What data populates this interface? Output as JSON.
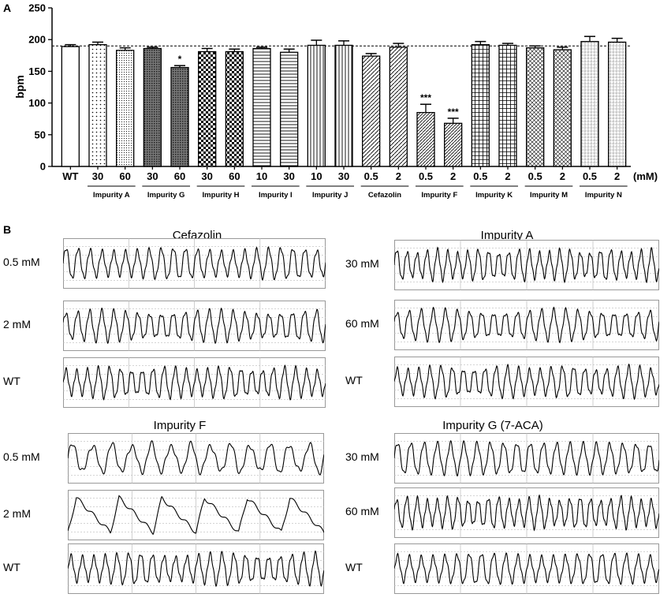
{
  "panel_a_letter": "A",
  "panel_b_letter": "B",
  "chart_data": {
    "type": "bar",
    "ylabel": "bpm",
    "xlabel": "",
    "ylim": [
      0,
      250
    ],
    "yticks": [
      0,
      50,
      100,
      150,
      200,
      250
    ],
    "unit_label": "(mM)",
    "reference_line": 190,
    "bars": [
      {
        "label": "WT",
        "value": 189,
        "err": 3,
        "pattern": "white",
        "sig": ""
      },
      {
        "label": "30",
        "value": 192,
        "err": 4,
        "pattern": "dots",
        "sig": ""
      },
      {
        "label": "60",
        "value": 183,
        "err": 4,
        "pattern": "finedots",
        "sig": ""
      },
      {
        "label": "30",
        "value": 186,
        "err": 2,
        "pattern": "dense",
        "sig": ""
      },
      {
        "label": "60",
        "value": 156,
        "err": 3,
        "pattern": "dense",
        "sig": "*"
      },
      {
        "label": "30",
        "value": 181,
        "err": 5,
        "pattern": "check",
        "sig": ""
      },
      {
        "label": "60",
        "value": 181,
        "err": 4,
        "pattern": "check",
        "sig": ""
      },
      {
        "label": "10",
        "value": 186,
        "err": 2,
        "pattern": "hlines",
        "sig": ""
      },
      {
        "label": "30",
        "value": 180,
        "err": 5,
        "pattern": "hlines",
        "sig": ""
      },
      {
        "label": "10",
        "value": 191,
        "err": 8,
        "pattern": "vlines",
        "sig": ""
      },
      {
        "label": "30",
        "value": 191,
        "err": 7,
        "pattern": "vlines",
        "sig": ""
      },
      {
        "label": "0.5",
        "value": 174,
        "err": 4,
        "pattern": "diag",
        "sig": ""
      },
      {
        "label": "2",
        "value": 188,
        "err": 6,
        "pattern": "diag",
        "sig": ""
      },
      {
        "label": "0.5",
        "value": 85,
        "err": 13,
        "pattern": "diag2",
        "sig": "***"
      },
      {
        "label": "2",
        "value": 68,
        "err": 8,
        "pattern": "diag2",
        "sig": "***"
      },
      {
        "label": "0.5",
        "value": 192,
        "err": 5,
        "pattern": "grid",
        "sig": ""
      },
      {
        "label": "2",
        "value": 191,
        "err": 3,
        "pattern": "grid",
        "sig": ""
      },
      {
        "label": "0.5",
        "value": 187,
        "err": 3,
        "pattern": "crosshatch",
        "sig": ""
      },
      {
        "label": "2",
        "value": 184,
        "err": 4,
        "pattern": "crosshatch",
        "sig": ""
      },
      {
        "label": "0.5",
        "value": 197,
        "err": 8,
        "pattern": "dotgrid",
        "sig": ""
      },
      {
        "label": "2",
        "value": 196,
        "err": 6,
        "pattern": "dotgrid",
        "sig": ""
      }
    ],
    "groups": [
      {
        "name": "Impurity A",
        "from": 1,
        "to": 2
      },
      {
        "name": "Impurity G",
        "from": 3,
        "to": 4
      },
      {
        "name": "Impurity H",
        "from": 5,
        "to": 6
      },
      {
        "name": "Impurity I",
        "from": 7,
        "to": 8
      },
      {
        "name": "Impurity J",
        "from": 9,
        "to": 10
      },
      {
        "name": "Cefazolin",
        "from": 11,
        "to": 12
      },
      {
        "name": "Impurity F",
        "from": 13,
        "to": 14
      },
      {
        "name": "Impurity K",
        "from": 15,
        "to": 16
      },
      {
        "name": "Impurity M",
        "from": 17,
        "to": 18
      },
      {
        "name": "Impurity N",
        "from": 19,
        "to": 20
      }
    ]
  },
  "traces": {
    "cefazolin": {
      "title": "Cefazolin",
      "rows": [
        "0.5 mM",
        "2 mM",
        "WT"
      ]
    },
    "impurity_a": {
      "title": "Impurity A",
      "rows": [
        "30 mM",
        "60 mM",
        "WT"
      ]
    },
    "impurity_f": {
      "title": "Impurity F",
      "rows": [
        "0.5 mM",
        "2 mM",
        "WT"
      ]
    },
    "impurity_g": {
      "title": "Impurity G (7-ACA)",
      "rows": [
        "30 mM",
        "60 mM",
        "WT"
      ]
    }
  },
  "trace_patterns": {
    "cefazolin": [
      22,
      22,
      24
    ],
    "impurity_a": [
      26,
      22,
      24
    ],
    "impurity_f": [
      13,
      6,
      22
    ],
    "impurity_g": [
      20,
      26,
      22
    ]
  }
}
